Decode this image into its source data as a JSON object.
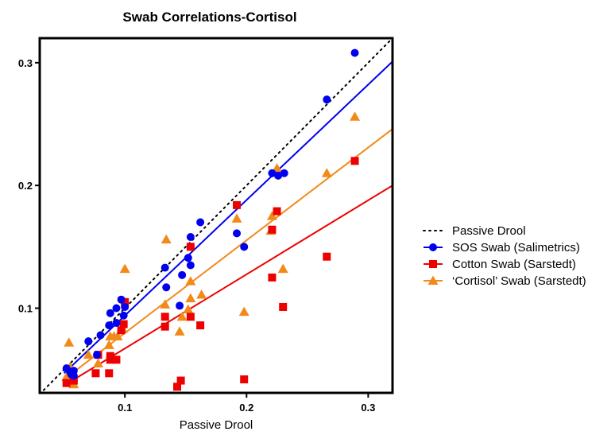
{
  "chart_data": {
    "type": "scatter",
    "title": "Swab Correlations-Cortisol",
    "xlabel": "Passive Drool",
    "ylabel": "",
    "xlim": [
      0.03,
      0.32
    ],
    "ylim": [
      0.031,
      0.32
    ],
    "xticks": [
      0.1,
      0.2,
      0.3
    ],
    "xtick_labels": [
      "0.1",
      "0.2",
      "0.3"
    ],
    "yticks": [
      0.1,
      0.2,
      0.3
    ],
    "ytick_labels": [
      "0.1",
      "0.2",
      "0.3"
    ],
    "grid": false,
    "legend_position": "right",
    "identity_line": {
      "name": "Passive Drool",
      "style": "dotted",
      "color": "#000000",
      "x": [
        0.03,
        0.32
      ],
      "y": [
        0.03,
        0.32
      ]
    },
    "series": [
      {
        "name": "SOS Swab (Salimetrics)",
        "marker": "circle",
        "color": "#0000ee",
        "fit": {
          "x": [
            0.05,
            0.32
          ],
          "y": [
            0.047,
            0.301
          ]
        },
        "points": [
          [
            0.289,
            0.308
          ],
          [
            0.266,
            0.27
          ],
          [
            0.221,
            0.21
          ],
          [
            0.226,
            0.208
          ],
          [
            0.231,
            0.21
          ],
          [
            0.162,
            0.17
          ],
          [
            0.154,
            0.158
          ],
          [
            0.192,
            0.161
          ],
          [
            0.198,
            0.15
          ],
          [
            0.152,
            0.141
          ],
          [
            0.154,
            0.135
          ],
          [
            0.133,
            0.133
          ],
          [
            0.134,
            0.117
          ],
          [
            0.147,
            0.127
          ],
          [
            0.145,
            0.102
          ],
          [
            0.097,
            0.107
          ],
          [
            0.1,
            0.101
          ],
          [
            0.093,
            0.1
          ],
          [
            0.088,
            0.096
          ],
          [
            0.099,
            0.094
          ],
          [
            0.093,
            0.088
          ],
          [
            0.087,
            0.086
          ],
          [
            0.08,
            0.078
          ],
          [
            0.07,
            0.073
          ],
          [
            0.077,
            0.062
          ],
          [
            0.052,
            0.051
          ],
          [
            0.055,
            0.048
          ],
          [
            0.058,
            0.049
          ],
          [
            0.056,
            0.046
          ],
          [
            0.058,
            0.045
          ]
        ]
      },
      {
        "name": "Cotton Swab (Sarstedt)",
        "marker": "square",
        "color": "#ee0000",
        "fit": {
          "x": [
            0.05,
            0.32
          ],
          "y": [
            0.037,
            0.2
          ]
        },
        "points": [
          [
            0.289,
            0.22
          ],
          [
            0.266,
            0.142
          ],
          [
            0.225,
            0.179
          ],
          [
            0.221,
            0.164
          ],
          [
            0.221,
            0.125
          ],
          [
            0.23,
            0.101
          ],
          [
            0.192,
            0.184
          ],
          [
            0.154,
            0.15
          ],
          [
            0.1,
            0.105
          ],
          [
            0.162,
            0.086
          ],
          [
            0.154,
            0.093
          ],
          [
            0.133,
            0.093
          ],
          [
            0.133,
            0.085
          ],
          [
            0.099,
            0.087
          ],
          [
            0.097,
            0.082
          ],
          [
            0.088,
            0.061
          ],
          [
            0.093,
            0.058
          ],
          [
            0.088,
            0.058
          ],
          [
            0.076,
            0.047
          ],
          [
            0.087,
            0.047
          ],
          [
            0.078,
            0.062
          ],
          [
            0.146,
            0.041
          ],
          [
            0.143,
            0.036
          ],
          [
            0.198,
            0.042
          ],
          [
            0.052,
            0.039
          ],
          [
            0.058,
            0.041
          ]
        ]
      },
      {
        "name": "‘Cortisol’ Swab (Sarstedt)",
        "marker": "triangle",
        "color": "#f28a1a",
        "fit": {
          "x": [
            0.05,
            0.32
          ],
          "y": [
            0.042,
            0.246
          ]
        },
        "points": [
          [
            0.289,
            0.256
          ],
          [
            0.266,
            0.21
          ],
          [
            0.225,
            0.214
          ],
          [
            0.22,
            0.163
          ],
          [
            0.221,
            0.175
          ],
          [
            0.23,
            0.132
          ],
          [
            0.192,
            0.173
          ],
          [
            0.198,
            0.097
          ],
          [
            0.134,
            0.156
          ],
          [
            0.1,
            0.132
          ],
          [
            0.154,
            0.122
          ],
          [
            0.163,
            0.111
          ],
          [
            0.154,
            0.108
          ],
          [
            0.152,
            0.099
          ],
          [
            0.133,
            0.103
          ],
          [
            0.147,
            0.093
          ],
          [
            0.145,
            0.081
          ],
          [
            0.098,
            0.083
          ],
          [
            0.091,
            0.077
          ],
          [
            0.094,
            0.077
          ],
          [
            0.088,
            0.077
          ],
          [
            0.087,
            0.07
          ],
          [
            0.078,
            0.055
          ],
          [
            0.054,
            0.072
          ],
          [
            0.07,
            0.062
          ],
          [
            0.052,
            0.044
          ],
          [
            0.058,
            0.038
          ],
          [
            0.055,
            0.052
          ]
        ]
      }
    ]
  },
  "legend": {
    "items": [
      {
        "label": "Passive Drool",
        "style": "dotted",
        "color": "#000000"
      },
      {
        "label": "SOS Swab (Salimetrics)",
        "marker": "circle",
        "color": "#0000ee"
      },
      {
        "label": "Cotton Swab (Sarstedt)",
        "marker": "square",
        "color": "#ee0000"
      },
      {
        "label": "‘Cortisol’ Swab (Sarstedt)",
        "marker": "triangle",
        "color": "#f28a1a"
      }
    ]
  }
}
